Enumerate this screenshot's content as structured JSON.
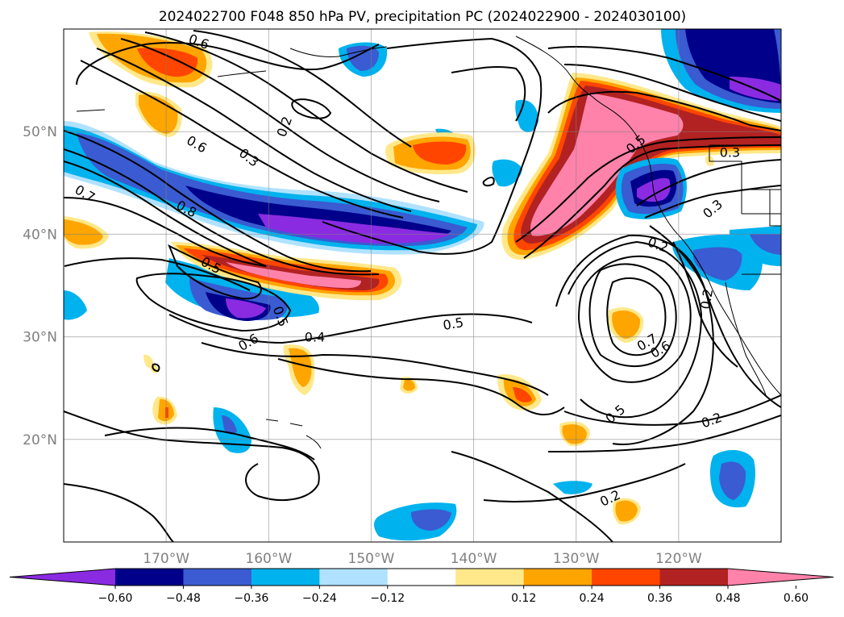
{
  "title": "2024022700 F048 850 hPa PV, precipitation PC (2024022900 - 2024030100)",
  "map": {
    "lon_range": [
      -180,
      -110
    ],
    "lat_range": [
      10,
      60
    ],
    "lon_ticks": [
      {
        "lon": -170,
        "label": "170°W"
      },
      {
        "lon": -160,
        "label": "160°W"
      },
      {
        "lon": -150,
        "label": "150°W"
      },
      {
        "lon": -140,
        "label": "140°W"
      },
      {
        "lon": -130,
        "label": "130°W"
      },
      {
        "lon": -120,
        "label": "120°W"
      }
    ],
    "lat_ticks": [
      {
        "lat": 20,
        "label": "20°N"
      },
      {
        "lat": 30,
        "label": "30°N"
      },
      {
        "lat": 40,
        "label": "40°N"
      },
      {
        "lat": 50,
        "label": "50°N"
      }
    ],
    "grid": true,
    "colors": [
      "#8a2be2",
      "#00008b",
      "#3a5bd1",
      "#00b2ee",
      "#b0e2ff",
      "#ffffff",
      "#ffe88a",
      "#ffa500",
      "#ff4500",
      "#b22222",
      "#ff82ab"
    ],
    "contour_labels": [
      {
        "text": "0.2",
        "lon": -158.5,
        "lat": 50.5,
        "rot": -70
      },
      {
        "text": "0.3",
        "lon": -161.9,
        "lat": 47.5,
        "rot": 38
      },
      {
        "text": "0.6",
        "lon": -167.0,
        "lat": 48.8,
        "rot": 30
      },
      {
        "text": "0.7",
        "lon": -177.9,
        "lat": 44.0,
        "rot": 30
      },
      {
        "text": "0.8",
        "lon": -168.0,
        "lat": 42.5,
        "rot": 28
      },
      {
        "text": "0.5",
        "lon": -165.6,
        "lat": 37.0,
        "rot": 28
      },
      {
        "text": "0.5",
        "lon": -158.8,
        "lat": 32.0,
        "rot": 70
      },
      {
        "text": "0.6",
        "lon": -162.0,
        "lat": 29.5,
        "rot": -30
      },
      {
        "text": "0.4",
        "lon": -155.5,
        "lat": 30.0,
        "rot": 0
      },
      {
        "text": "0.5",
        "lon": -142.0,
        "lat": 31.3,
        "rot": -10
      },
      {
        "text": "0.7",
        "lon": -123.1,
        "lat": 29.5,
        "rot": -30
      },
      {
        "text": "0.6",
        "lon": -121.8,
        "lat": 28.8,
        "rot": -30
      },
      {
        "text": "0.5",
        "lon": -126.2,
        "lat": 22.5,
        "rot": -40
      },
      {
        "text": "0.2",
        "lon": -116.8,
        "lat": 21.9,
        "rot": -20
      },
      {
        "text": "0.2",
        "lon": -126.7,
        "lat": 14.3,
        "rot": -25
      },
      {
        "text": "0.2",
        "lon": -122.0,
        "lat": 39.0,
        "rot": 20
      },
      {
        "text": "0.3",
        "lon": -116.7,
        "lat": 42.5,
        "rot": -40
      },
      {
        "text": "0.2",
        "lon": -117.3,
        "lat": 33.7,
        "rot": -80
      },
      {
        "text": "0.3",
        "lon": -115.0,
        "lat": 48.0,
        "rot": 0
      },
      {
        "text": "0.6",
        "lon": -166.8,
        "lat": 58.8,
        "rot": 20
      },
      {
        "text": "0.5",
        "lon": -124.2,
        "lat": 48.8,
        "rot": -40
      }
    ]
  },
  "colorbar": {
    "tick_labels": [
      "−0.60",
      "−0.48",
      "−0.36",
      "−0.24",
      "−0.12",
      "0.12",
      "0.24",
      "0.36",
      "0.48",
      "0.60"
    ]
  }
}
